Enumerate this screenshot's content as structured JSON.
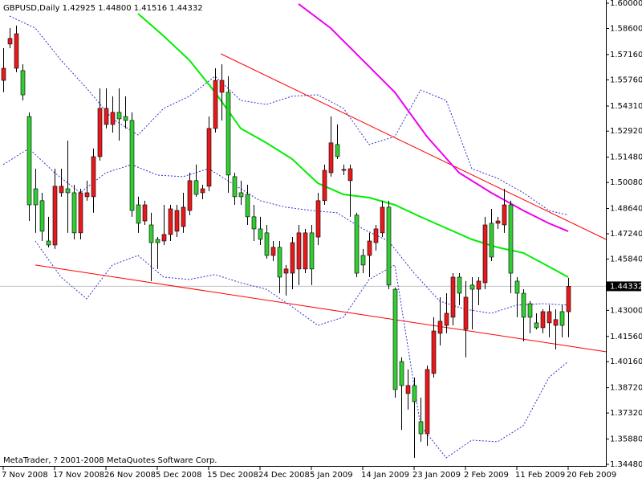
{
  "chart_data": {
    "type": "candlestick",
    "title": "GBPUSD,Daily  1.42925 1.44800 1.41516 1.44332",
    "footer": "MetaTrader, ? 2001-2008 MetaQuotes Software Corp.",
    "up_color": "#e8191c",
    "down_color": "#32cd32",
    "wick_color": "#000000",
    "categories": [
      "7 Nov 2008",
      null,
      null,
      null,
      null,
      null,
      null,
      null,
      "17 Nov 2008",
      null,
      null,
      null,
      null,
      null,
      null,
      null,
      "26 Nov 2008",
      null,
      null,
      null,
      null,
      null,
      null,
      null,
      "5 Dec 2008",
      null,
      null,
      null,
      null,
      null,
      null,
      null,
      "15 Dec 2008",
      null,
      null,
      null,
      null,
      null,
      null,
      null,
      "24 Dec 2008",
      null,
      null,
      null,
      null,
      null,
      null,
      null,
      "5 Jan 2009",
      null,
      null,
      null,
      null,
      null,
      null,
      null,
      "14 Jan 2009",
      null,
      null,
      null,
      null,
      null,
      null,
      null,
      "23 Jan 2009",
      null,
      null,
      null,
      null,
      null,
      null,
      null,
      "2 Feb 2009",
      null,
      null,
      null,
      null,
      null,
      null,
      null,
      "11 Feb 2009",
      null,
      null,
      null,
      null,
      null,
      null,
      null,
      "20 Feb 2009"
    ],
    "open": [
      1.5573,
      1.5774,
      1.564,
      1.5627,
      1.5373,
      1.4973,
      1.4907,
      1.4684,
      1.4662,
      1.4951,
      1.4973,
      1.4951,
      1.4729,
      1.4929,
      1.4929,
      1.5151,
      1.5329,
      1.5329,
      1.5396,
      1.5373,
      1.5351,
      1.4884,
      1.4795,
      1.4773,
      1.4693,
      1.4684,
      1.472,
      1.4738,
      1.4764,
      1.4853,
      1.5018,
      1.4951,
      1.4987,
      1.5307,
      1.5507,
      1.5507,
      1.504,
      1.4951,
      1.4942,
      1.4818,
      1.4751,
      1.4729,
      1.4604,
      1.4649,
      1.4506,
      1.4506,
      1.4529,
      1.4529,
      1.4729,
      1.4706,
      1.4907,
      1.5062,
      1.5218,
      1.5075,
      1.5018,
      1.4827,
      1.4604,
      1.4604,
      1.4675,
      1.4729,
      1.4871,
      1.4417,
      1.4017,
      1.384,
      1.3884,
      1.3684,
      1.3617,
      1.3951,
      1.4173,
      1.4217,
      1.4262,
      1.4484,
      1.4195,
      1.444,
      1.4417,
      1.4453,
      1.4782,
      1.4782,
      1.4773,
      1.4884,
      1.4462,
      1.4395,
      1.4337,
      1.4231,
      1.4204,
      1.4231,
      1.4217,
      1.4293,
      1.42925
    ],
    "high": [
      1.5751,
      1.5862,
      1.5876,
      1.5662,
      1.5396,
      1.5084,
      1.4951,
      1.4818,
      1.5084,
      1.5084,
      1.524,
      1.4995,
      1.4973,
      1.5018,
      1.5196,
      1.5529,
      1.5529,
      1.5485,
      1.5529,
      1.5485,
      1.5396,
      1.4929,
      1.4907,
      1.484,
      1.4706,
      1.4884,
      1.4884,
      1.4884,
      1.4951,
      1.5062,
      1.5107,
      1.4995,
      1.5373,
      1.564,
      1.5662,
      1.5596,
      1.5062,
      1.5018,
      1.4995,
      1.4884,
      1.4818,
      1.4773,
      1.4684,
      1.4684,
      1.4551,
      1.4706,
      1.4773,
      1.4751,
      1.4773,
      1.4951,
      1.5107,
      1.5373,
      1.5329,
      1.5107,
      1.5107,
      1.484,
      1.464,
      1.4729,
      1.4773,
      1.4907,
      1.4907,
      1.4426,
      1.404,
      1.3973,
      1.3928,
      1.3817,
      1.3995,
      1.4262,
      1.4373,
      1.4395,
      1.4506,
      1.4506,
      1.4462,
      1.4484,
      1.4484,
      1.4818,
      1.4862,
      1.4818,
      1.4973,
      1.4907,
      1.4484,
      1.4417,
      1.4351,
      1.4284,
      1.4306,
      1.4329,
      1.4306,
      1.4329,
      1.448
    ],
    "low": [
      1.5507,
      1.5751,
      1.5618,
      1.5462,
      1.4795,
      1.4729,
      1.4684,
      1.4649,
      1.464,
      1.4929,
      1.4729,
      1.4693,
      1.4693,
      1.4907,
      1.484,
      1.5129,
      1.5307,
      1.5284,
      1.524,
      1.5307,
      1.4818,
      1.4729,
      1.4773,
      1.4462,
      1.4529,
      1.4662,
      1.4684,
      1.4706,
      1.4729,
      1.4827,
      1.4929,
      1.4915,
      1.496,
      1.5284,
      1.5351,
      1.4951,
      1.4884,
      1.4884,
      1.4773,
      1.4684,
      1.4662,
      1.4586,
      1.4573,
      1.4395,
      1.4382,
      1.4417,
      1.444,
      1.4506,
      1.444,
      1.4662,
      1.4884,
      1.504,
      1.5138,
      1.5049,
      1.4818,
      1.4484,
      1.4506,
      1.4484,
      1.4631,
      1.4706,
      1.4417,
      1.3817,
      1.3639,
      1.3751,
      1.3484,
      1.3573,
      1.3551,
      1.3928,
      1.4106,
      1.4173,
      1.4217,
      1.4329,
      1.404,
      1.4195,
      1.4329,
      1.4417,
      1.4573,
      1.4751,
      1.4729,
      1.4395,
      1.4262,
      1.4128,
      1.4173,
      1.4195,
      1.4173,
      1.4151,
      1.4084,
      1.4151,
      1.41516
    ],
    "close": [
      1.564,
      1.5805,
      1.5831,
      1.5493,
      1.4884,
      1.4884,
      1.4738,
      1.4662,
      1.4987,
      1.4987,
      1.4951,
      1.4729,
      1.4951,
      1.4951,
      1.5151,
      1.5418,
      1.5418,
      1.5396,
      1.536,
      1.5351,
      1.4853,
      1.4782,
      1.4884,
      1.4675,
      1.4675,
      1.472,
      1.4862,
      1.4853,
      1.4871,
      1.5018,
      1.4942,
      1.4973,
      1.5307,
      1.5573,
      1.5573,
      1.5049,
      1.4929,
      1.4929,
      1.4818,
      1.4751,
      1.4693,
      1.4604,
      1.4649,
      1.4484,
      1.4529,
      1.4675,
      1.4729,
      1.4729,
      1.4529,
      1.4907,
      1.5075,
      1.5227,
      1.5151,
      1.508,
      1.5084,
      1.4506,
      1.4551,
      1.4684,
      1.4751,
      1.4871,
      1.444,
      1.3862,
      1.3884,
      1.3884,
      1.3795,
      1.3617,
      1.3973,
      1.4186,
      1.424,
      1.4284,
      1.4484,
      1.4395,
      1.4373,
      1.4417,
      1.4462,
      1.4773,
      1.4595,
      1.4795,
      1.4884,
      1.4506,
      1.4395,
      1.4262,
      1.4262,
      1.4204,
      1.4293,
      1.4293,
      1.4249,
      1.4217,
      1.44332
    ],
    "lines": [
      {
        "color": "#ff0000",
        "width": 1,
        "dash": false,
        "x": [
          5,
          93.9
        ],
        "values": [
          1.4551,
          1.4071
        ]
      },
      {
        "color": "#ff0000",
        "width": 1,
        "dash": false,
        "x": [
          33.9,
          93.9
        ],
        "values": [
          1.572,
          1.4693
        ]
      },
      {
        "color": "#3333cc",
        "width": 1,
        "dash": true,
        "x": [
          1,
          5,
          9,
          13,
          17,
          21,
          25,
          29,
          33,
          37,
          41,
          45,
          49,
          53,
          57,
          61,
          65,
          69,
          73,
          77,
          81,
          85,
          88
        ],
        "values": [
          1.5929,
          1.5862,
          1.5685,
          1.5529,
          1.536,
          1.5271,
          1.5418,
          1.5485,
          1.5596,
          1.5462,
          1.544,
          1.5485,
          1.5493,
          1.5418,
          1.5218,
          1.5262,
          1.552,
          1.5462,
          1.5084,
          1.5031,
          1.4951,
          1.4853,
          1.4827
        ]
      },
      {
        "color": "#3333cc",
        "width": 1,
        "dash": true,
        "x": [
          0,
          4,
          8,
          12,
          16,
          20,
          24,
          28,
          32,
          36,
          40,
          44,
          48,
          52,
          56,
          60,
          64,
          68,
          72,
          76,
          80,
          84,
          88
        ],
        "values": [
          1.5107,
          1.5196,
          1.5062,
          1.4951,
          1.5062,
          1.5107,
          1.5049,
          1.504,
          1.5084,
          1.4995,
          1.4907,
          1.4871,
          1.4853,
          1.484,
          1.4751,
          1.4684,
          1.4506,
          1.4351,
          1.4306,
          1.4284,
          1.4329,
          1.4337,
          1.4329
        ]
      },
      {
        "color": "#3333cc",
        "width": 1,
        "dash": true,
        "x": [
          5,
          9,
          13,
          17,
          21,
          25,
          29,
          33,
          37,
          41,
          45,
          49,
          53,
          57,
          61,
          65,
          69,
          73,
          77,
          81,
          85,
          88
        ],
        "values": [
          1.4684,
          1.4484,
          1.4364,
          1.4551,
          1.4604,
          1.4484,
          1.4471,
          1.4498,
          1.4453,
          1.4417,
          1.432,
          1.4217,
          1.4262,
          1.4471,
          1.4551,
          1.3662,
          1.3484,
          1.3582,
          1.3573,
          1.3662,
          1.3928,
          1.4017
        ]
      },
      {
        "color": "#00ee00",
        "width": 2,
        "dash": false,
        "x": [
          21,
          25,
          29,
          33,
          37,
          41,
          45,
          49,
          53,
          57,
          61,
          65,
          69,
          73,
          77,
          81,
          85,
          88
        ],
        "values": [
          1.5942,
          1.5818,
          1.5685,
          1.5507,
          1.5307,
          1.5227,
          1.5138,
          1.5004,
          1.4942,
          1.4924,
          1.4884,
          1.4818,
          1.4755,
          1.4693,
          1.4649,
          1.4618,
          1.4542,
          1.4484
        ]
      },
      {
        "color": "#ee00ee",
        "width": 2,
        "dash": false,
        "x": [
          46,
          51,
          56,
          61,
          66,
          71,
          76,
          81,
          85,
          88
        ],
        "values": [
          1.5996,
          1.5862,
          1.5685,
          1.5507,
          1.5262,
          1.5062,
          1.4951,
          1.4853,
          1.4782,
          1.4738
        ]
      }
    ],
    "price_line": {
      "value": 1.44332,
      "label": "1.44332",
      "color": "#c0c0c0"
    },
    "ylim": [
      1.3448,
      1.6
    ],
    "yticks": [
      {
        "value": 1.6,
        "label": "1.60000"
      },
      {
        "value": 1.586,
        "label": "1.58600"
      },
      {
        "value": 1.5716,
        "label": "1.57160"
      },
      {
        "value": 1.5576,
        "label": "1.55760"
      },
      {
        "value": 1.5431,
        "label": "1.54310"
      },
      {
        "value": 1.5292,
        "label": "1.52920"
      },
      {
        "value": 1.5148,
        "label": "1.51480"
      },
      {
        "value": 1.5008,
        "label": "1.50080"
      },
      {
        "value": 1.4864,
        "label": "1.48640"
      },
      {
        "value": 1.4724,
        "label": "1.47240"
      },
      {
        "value": 1.4584,
        "label": "1.45840"
      },
      {
        "value": 1.43,
        "label": "1.43000"
      },
      {
        "value": 1.4156,
        "label": "1.41560"
      },
      {
        "value": 1.4016,
        "label": "1.40160"
      },
      {
        "value": 1.3872,
        "label": "1.38720"
      },
      {
        "value": 1.3732,
        "label": "1.37320"
      },
      {
        "value": 1.3588,
        "label": "1.35880"
      },
      {
        "value": 1.3448,
        "label": "1.34480"
      }
    ]
  }
}
